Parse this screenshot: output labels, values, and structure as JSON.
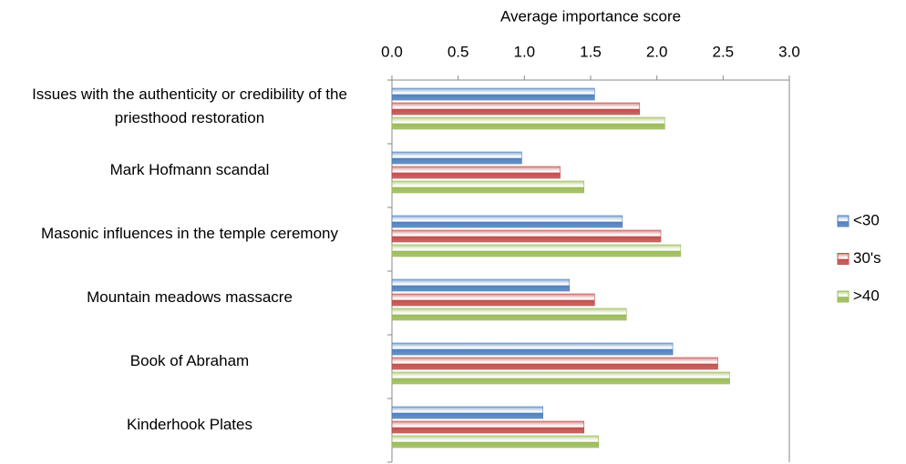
{
  "chart_data": {
    "type": "hbar",
    "title": "Average importance score",
    "categories": [
      "Issues with the authenticity or credibility of the priesthood restoration",
      "Mark Hofmann scandal",
      "Masonic influences in the temple ceremony",
      "Mountain meadows massacre",
      "Book of Abraham",
      "Kinderhook Plates"
    ],
    "series": [
      {
        "name": "<30",
        "color": "#4f81bd",
        "values": [
          1.53,
          0.98,
          1.74,
          1.34,
          2.12,
          1.14
        ]
      },
      {
        "name": "30's",
        "color": "#c0504d",
        "values": [
          1.87,
          1.27,
          2.03,
          1.53,
          2.46,
          1.45
        ]
      },
      {
        "name": ">40",
        "color": "#9bbb59",
        "values": [
          2.06,
          1.45,
          2.18,
          1.77,
          2.55,
          1.56
        ]
      }
    ],
    "xlim": [
      0,
      3
    ],
    "xticks": [
      {
        "value": 0,
        "label": "0.0"
      },
      0.5,
      {
        "value": 1,
        "label": "1.0"
      },
      1.5,
      {
        "value": 2,
        "label": "2.0"
      },
      2.5,
      {
        "value": 3,
        "label": "3.0"
      }
    ],
    "legend": "right",
    "grid": false
  }
}
